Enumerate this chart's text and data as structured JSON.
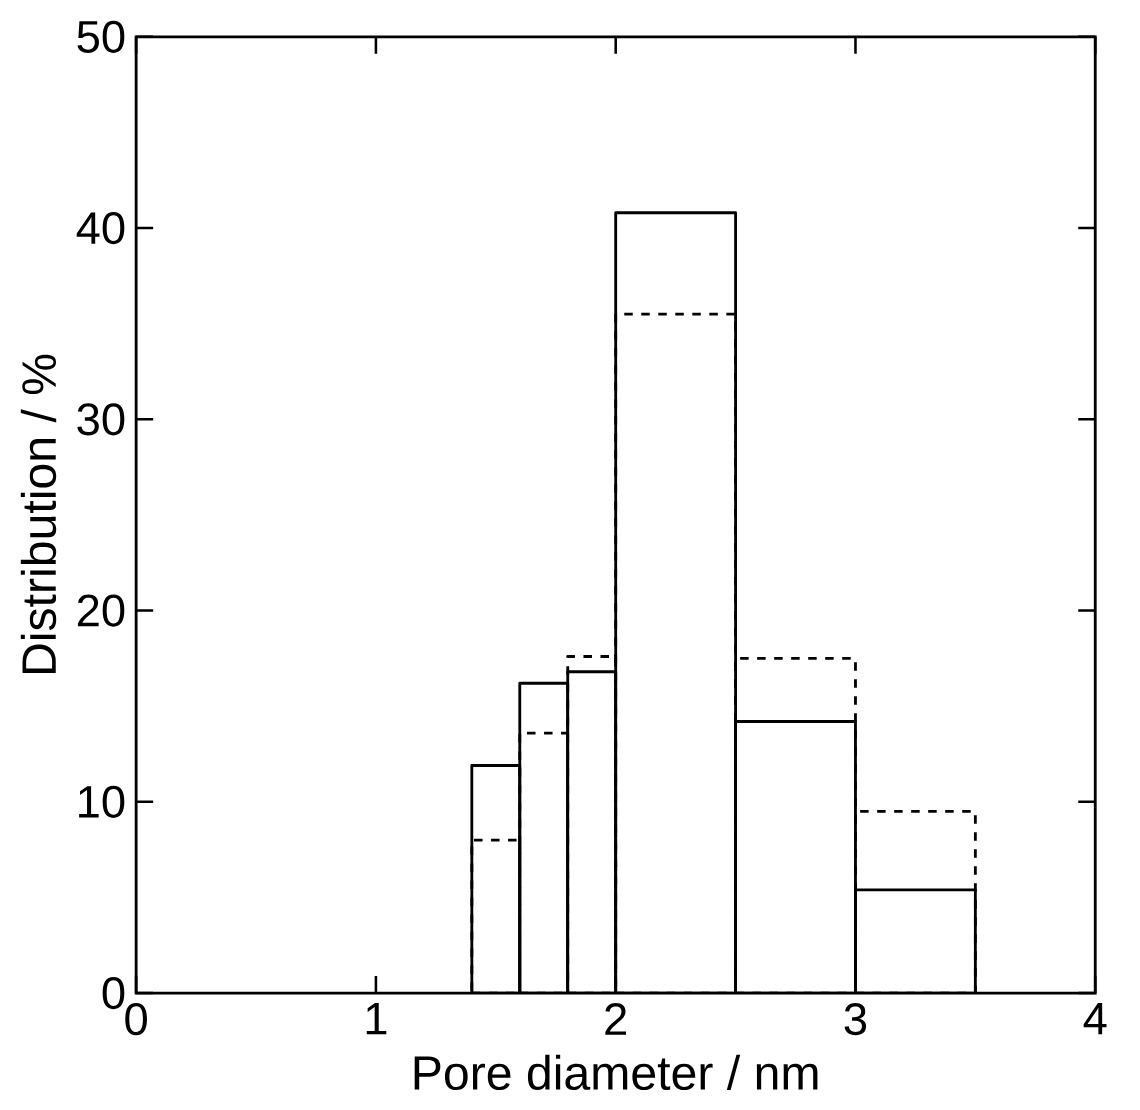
{
  "chart_data": {
    "type": "histogram",
    "xlabel": "Pore diameter / nm",
    "ylabel": "Distribution / %",
    "bins": [
      1.4,
      1.6,
      1.8,
      2.0,
      2.5,
      3.0,
      3.5
    ],
    "series": [
      {
        "color": "#000000",
        "line_style": "dashed",
        "values": [
          8.0,
          13.6,
          17.6,
          35.5,
          17.5,
          9.5
        ]
      },
      {
        "color": "#000000",
        "line_style": "solid",
        "values": [
          11.9,
          16.2,
          16.8,
          40.8,
          14.2,
          5.4
        ]
      }
    ],
    "xlim": [
      0,
      4
    ],
    "ylim": [
      0,
      50
    ],
    "xticks": [
      0,
      1,
      2,
      3,
      4
    ],
    "yticks": [
      0,
      10,
      20,
      30,
      40,
      50
    ],
    "grid": false
  }
}
